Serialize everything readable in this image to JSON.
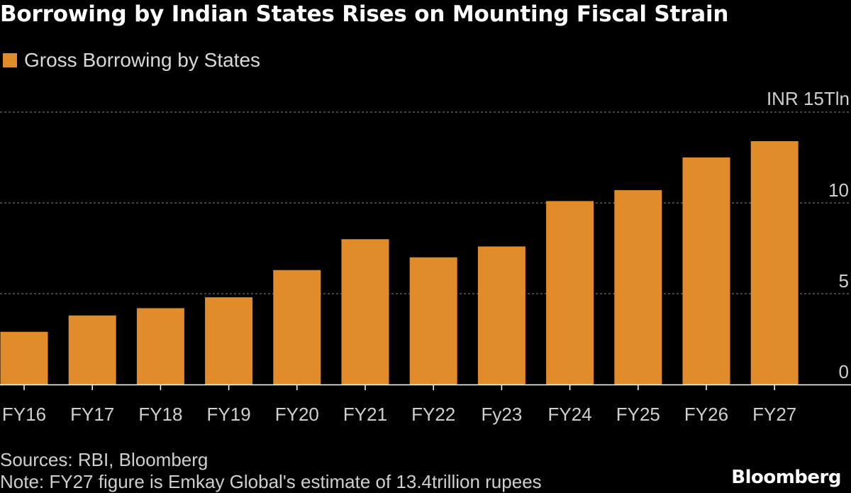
{
  "title": "Borrowing by Indian States Rises on Mounting Fiscal Strain",
  "legend": {
    "label": "Gross Borrowing by States",
    "color": "#e08c2a"
  },
  "footer": {
    "sources": "Sources: RBI, Bloomberg",
    "note": "Note: FY27 figure is Emkay Global's estimate of 13.4trillion rupees",
    "brand": "Bloomberg"
  },
  "chart_data": {
    "type": "bar",
    "title": "Borrowing by Indian States Rises on Mounting Fiscal Strain",
    "xlabel": "",
    "ylabel": "",
    "unit_label": "INR 15Tln",
    "categories": [
      "FY16",
      "FY17",
      "FY18",
      "FY19",
      "FY20",
      "FY21",
      "FY22",
      "Fy23",
      "FY24",
      "FY25",
      "FY26",
      "FY27"
    ],
    "series": [
      {
        "name": "Gross Borrowing by States",
        "values": [
          2.9,
          3.8,
          4.2,
          4.8,
          6.3,
          8.0,
          7.0,
          7.6,
          10.1,
          10.7,
          12.5,
          13.4
        ]
      }
    ],
    "ylim": [
      0,
      15
    ],
    "yticks": [
      0,
      5,
      10
    ],
    "ytick_labels": [
      "0",
      "5",
      "10"
    ],
    "grid": true,
    "legend_position": "top-left",
    "bar_color": "#e08c2a",
    "grid_color": "#8a8a8a",
    "text_color": "#cfcfcf"
  }
}
